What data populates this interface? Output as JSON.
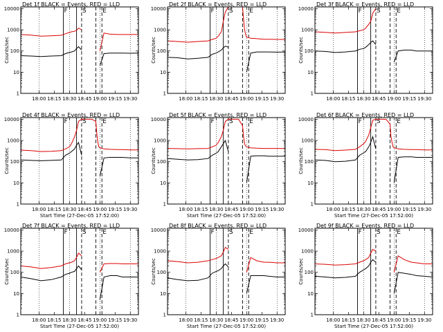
{
  "figure": {
    "panels": [
      {
        "title": "Det 1f BLACK = Events, RED = LLD",
        "xlabel": "",
        "ylabel": "Counts/sec"
      },
      {
        "title": "Det 2f BLACK = Events, RED = LLD",
        "xlabel": "",
        "ylabel": "Counts/sec"
      },
      {
        "title": "Det 3f BLACK = Events, RED = LLD",
        "xlabel": "",
        "ylabel": "Counts/sec"
      },
      {
        "title": "Det 4f BLACK = Events, RED = LLD",
        "xlabel": "Start Time (27-Dec-05 17:52:00)",
        "ylabel": "Counts/sec"
      },
      {
        "title": "Det 5f BLACK = Events, RED = LLD",
        "xlabel": "Start Time (27-Dec-05 17:52:00)",
        "ylabel": "Counts/sec"
      },
      {
        "title": "Det 6f BLACK = Events, RED = LLD",
        "xlabel": "Start Time (27-Dec-05 17:52:00)",
        "ylabel": "Counts/sec"
      },
      {
        "title": "Det 7f BLACK = Events, RED = LLD",
        "xlabel": "Start Time (27-Dec-05 17:52:00)",
        "ylabel": "Counts/sec"
      },
      {
        "title": "Det 8f BLACK = Events, RED = LLD",
        "xlabel": "Start Time (27-Dec-05 17:52:00)",
        "ylabel": "Counts/sec"
      },
      {
        "title": "Det 9f BLACK = Events, RED = LLD",
        "xlabel": "Start Time (27-Dec-05 17:52:00)",
        "ylabel": "Counts/sec"
      }
    ]
  },
  "chart_data": {
    "type": "line",
    "layout": "3x3 grid of detector panels",
    "x_ticks": [
      "18:00",
      "18:15",
      "18:30",
      "18:45",
      "19:00",
      "19:15",
      "19:30"
    ],
    "x_tick_minutes": [
      18,
      33,
      48,
      63,
      78,
      93,
      108
    ],
    "xlim_minutes": [
      0,
      116
    ],
    "y_scale": "log",
    "ylim": [
      1,
      12000
    ],
    "y_ticks": [
      1,
      10,
      100,
      1000,
      10000
    ],
    "y_tick_labels": [
      "1",
      "10",
      "100",
      "1000",
      "10000"
    ],
    "colors": {
      "events": "#000000",
      "lld": "#dd0000"
    },
    "vertical_lines": [
      {
        "label": "F",
        "minute": 42,
        "style": "solid"
      },
      {
        "label": "",
        "minute": 55,
        "style": "solid"
      },
      {
        "label": "S",
        "minute": 60,
        "style": "dashed"
      },
      {
        "label": "",
        "minute": 74,
        "style": "dashed"
      },
      {
        "label": "E",
        "minute": 80,
        "style": "dashed"
      }
    ],
    "dotted_gridlines_minutes": [
      18,
      48,
      78,
      108
    ],
    "series_x_minutes": [
      0,
      10,
      20,
      30,
      40,
      44,
      48,
      50,
      53,
      55,
      57,
      60,
      63,
      66,
      70,
      74,
      75,
      76,
      77,
      78,
      82,
      88,
      95,
      100,
      108,
      116
    ],
    "panels": [
      {
        "detector": "1f",
        "events": [
          60,
          58,
          55,
          58,
          60,
          75,
          85,
          90,
          100,
          130,
          160,
          110,
          null,
          null,
          null,
          null,
          null,
          null,
          null,
          20,
          75,
          80,
          80,
          80,
          78,
          80
        ],
        "lld": [
          600,
          560,
          500,
          520,
          550,
          650,
          750,
          800,
          850,
          950,
          1200,
          1000,
          null,
          null,
          null,
          null,
          null,
          null,
          null,
          100,
          700,
          620,
          600,
          600,
          600,
          600
        ]
      },
      {
        "detector": "2f",
        "events": [
          50,
          48,
          42,
          45,
          50,
          70,
          80,
          90,
          110,
          140,
          170,
          150,
          null,
          null,
          null,
          null,
          null,
          null,
          null,
          10,
          80,
          90,
          90,
          90,
          88,
          90
        ],
        "lld": [
          300,
          280,
          260,
          280,
          300,
          350,
          400,
          500,
          800,
          2500,
          7000,
          12000,
          12000,
          12000,
          12000,
          12000,
          3000,
          1000,
          600,
          450,
          400,
          380,
          360,
          360,
          350,
          350
        ]
      },
      {
        "detector": "3f",
        "events": [
          100,
          95,
          85,
          90,
          100,
          120,
          130,
          150,
          200,
          250,
          300,
          200,
          null,
          null,
          null,
          null,
          null,
          null,
          null,
          30,
          100,
          110,
          110,
          100,
          100,
          100
        ],
        "lld": [
          800,
          760,
          700,
          750,
          800,
          900,
          1000,
          1200,
          1800,
          2500,
          6000,
          10000,
          null,
          null,
          null,
          null,
          null,
          null,
          null,
          null,
          null,
          null,
          null,
          null,
          null,
          null
        ]
      },
      {
        "detector": "4f",
        "events": [
          120,
          115,
          110,
          115,
          120,
          200,
          250,
          300,
          400,
          600,
          800,
          200,
          null,
          null,
          null,
          null,
          null,
          null,
          null,
          20,
          150,
          160,
          160,
          160,
          150,
          150
        ],
        "lld": [
          350,
          330,
          300,
          310,
          330,
          400,
          500,
          700,
          1500,
          3000,
          8000,
          10000,
          10000,
          10000,
          10000,
          8000,
          2000,
          800,
          500,
          450,
          400,
          380,
          370,
          370,
          360,
          360
        ]
      },
      {
        "detector": "5f",
        "events": [
          140,
          130,
          120,
          125,
          140,
          200,
          250,
          300,
          500,
          700,
          1000,
          300,
          null,
          null,
          null,
          null,
          null,
          null,
          null,
          10,
          180,
          190,
          190,
          180,
          180,
          180
        ],
        "lld": [
          420,
          410,
          400,
          410,
          420,
          500,
          600,
          800,
          1500,
          3000,
          8000,
          10000,
          10000,
          10000,
          10000,
          5000,
          1500,
          700,
          550,
          500,
          450,
          430,
          420,
          420,
          420,
          420
        ]
      },
      {
        "detector": "6f",
        "events": [
          120,
          115,
          100,
          105,
          120,
          200,
          260,
          300,
          500,
          800,
          1500,
          400,
          null,
          null,
          null,
          null,
          null,
          null,
          null,
          10,
          160,
          170,
          170,
          160,
          160,
          160
        ],
        "lld": [
          380,
          370,
          330,
          350,
          380,
          500,
          700,
          900,
          1800,
          4000,
          9000,
          10000,
          10000,
          10000,
          10000,
          6000,
          1500,
          800,
          500,
          450,
          400,
          380,
          370,
          370,
          360,
          360
        ]
      },
      {
        "detector": "7f",
        "events": [
          60,
          50,
          40,
          45,
          60,
          80,
          90,
          100,
          110,
          150,
          200,
          130,
          null,
          null,
          null,
          null,
          null,
          null,
          null,
          5,
          60,
          70,
          70,
          60,
          60,
          60
        ],
        "lld": [
          200,
          180,
          150,
          170,
          200,
          250,
          280,
          300,
          350,
          500,
          800,
          600,
          null,
          null,
          null,
          null,
          null,
          null,
          null,
          100,
          250,
          260,
          260,
          250,
          250,
          250
        ]
      },
      {
        "detector": "8f",
        "events": [
          55,
          45,
          40,
          42,
          55,
          90,
          110,
          120,
          150,
          200,
          250,
          180,
          null,
          null,
          null,
          null,
          null,
          null,
          null,
          10,
          70,
          70,
          70,
          65,
          60,
          60
        ],
        "lld": [
          350,
          320,
          280,
          300,
          350,
          400,
          450,
          500,
          600,
          900,
          1500,
          1200,
          null,
          null,
          null,
          null,
          null,
          null,
          null,
          100,
          500,
          350,
          300,
          300,
          280,
          280
        ]
      },
      {
        "detector": "9f",
        "events": [
          65,
          60,
          55,
          58,
          65,
          100,
          130,
          150,
          200,
          300,
          400,
          300,
          null,
          null,
          null,
          null,
          null,
          null,
          null,
          10,
          100,
          90,
          80,
          70,
          65,
          60
        ],
        "lld": [
          250,
          240,
          220,
          230,
          250,
          300,
          350,
          400,
          500,
          800,
          1200,
          1000,
          null,
          null,
          null,
          null,
          null,
          null,
          null,
          100,
          600,
          400,
          300,
          280,
          250,
          250
        ]
      }
    ]
  }
}
